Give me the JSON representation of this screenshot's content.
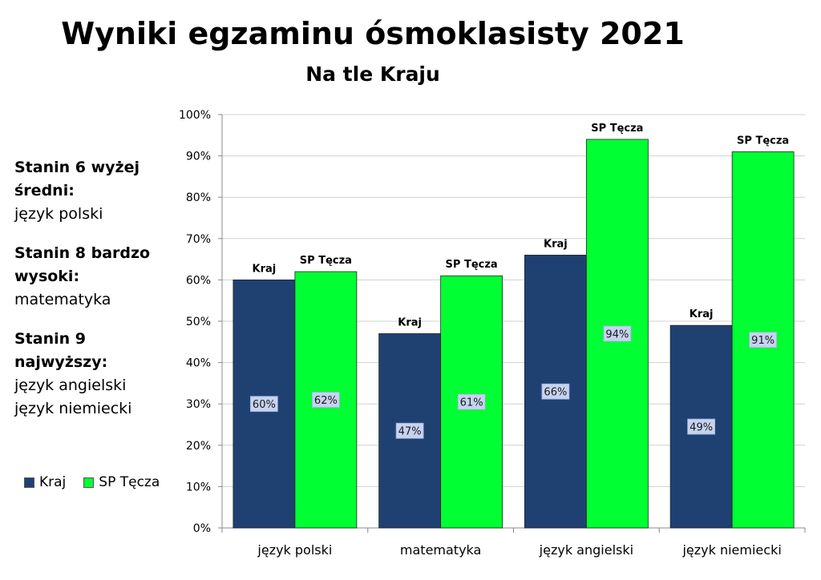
{
  "title": "Wyniki egzaminu ósmoklasisty 2021",
  "subtitle": "Na tle Kraju",
  "notes": [
    {
      "heading": "Stanin 6 wyżej średni:",
      "items": [
        "język polski"
      ]
    },
    {
      "heading": "Stanin 8 bardzo wysoki:",
      "items": [
        "matematyka"
      ]
    },
    {
      "heading": "Stanin 9 najwyższy:",
      "items": [
        "język angielski",
        "język niemiecki"
      ]
    }
  ],
  "colors": {
    "kraj": "#1f4172",
    "tecza": "#00ff33",
    "label_bg": "#c6d3f0"
  },
  "chart_data": {
    "type": "bar",
    "categories": [
      "język polski",
      "matematyka",
      "język angielski",
      "język niemiecki"
    ],
    "series": [
      {
        "name": "Kraj",
        "values": [
          60,
          47,
          66,
          49
        ]
      },
      {
        "name": "SP Tęcza",
        "values": [
          62,
          61,
          94,
          91
        ]
      }
    ],
    "value_labels": [
      [
        "60%",
        "47%",
        "66%",
        "49%"
      ],
      [
        "62%",
        "61%",
        "94%",
        "91%"
      ]
    ],
    "bar_captions": [
      "Kraj",
      "SP Tęcza"
    ],
    "y_ticks": [
      "0%",
      "10%",
      "20%",
      "30%",
      "40%",
      "50%",
      "60%",
      "70%",
      "80%",
      "90%",
      "100%"
    ],
    "ylim": [
      0,
      100
    ],
    "grid": true,
    "legend_position": "left"
  }
}
